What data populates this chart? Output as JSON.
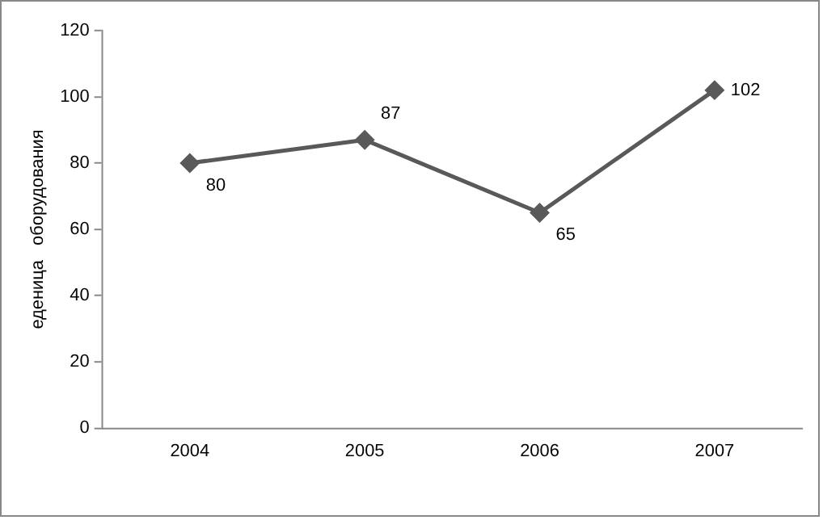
{
  "chart_data": {
    "type": "line",
    "ylabel": "еденица   оборудования",
    "categories": [
      "2004",
      "2005",
      "2006",
      "2007"
    ],
    "series": [
      {
        "color": "#595959",
        "values": [
          80,
          87,
          65,
          102
        ]
      }
    ],
    "ylim": [
      0,
      120
    ],
    "yticks": [
      0,
      20,
      40,
      60,
      80,
      100,
      120
    ],
    "grid": false,
    "legend": false,
    "marker": "diamond",
    "line_style": "solid",
    "data_labels": true
  }
}
